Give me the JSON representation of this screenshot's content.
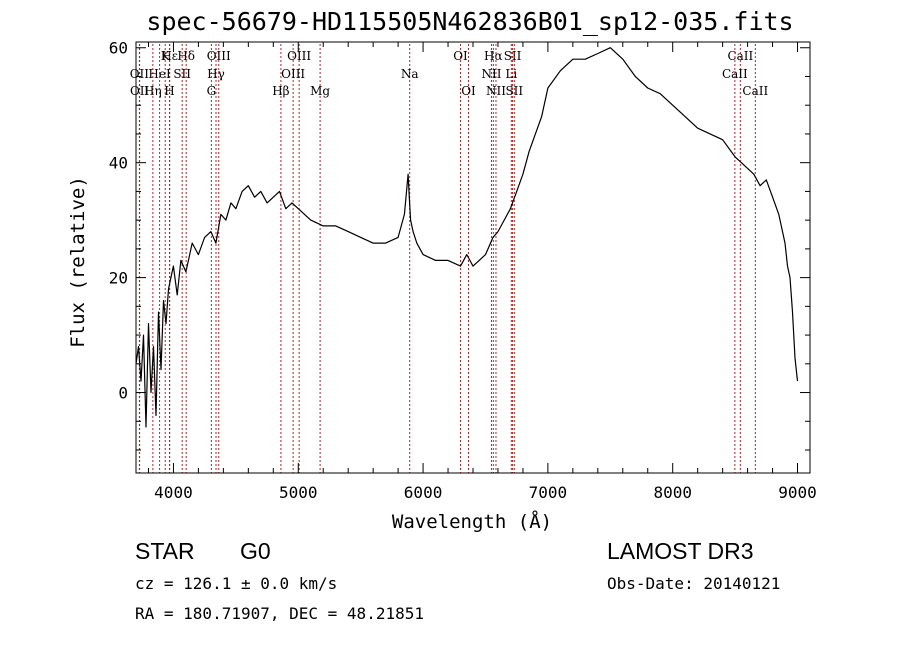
{
  "chart_data": {
    "type": "line",
    "title": "spec-56679-HD115505N462836B01_sp12-035.fits",
    "xlabel": "Wavelength (Å)",
    "ylabel": "Flux (relative)",
    "xlim": [
      3700,
      9100
    ],
    "ylim": [
      -14,
      61
    ],
    "xticks": [
      4000,
      5000,
      6000,
      7000,
      8000,
      9000
    ],
    "yticks": [
      0,
      20,
      40,
      60
    ],
    "series": [
      {
        "name": "spectrum",
        "x": [
          3700,
          3720,
          3740,
          3760,
          3780,
          3800,
          3820,
          3840,
          3860,
          3880,
          3900,
          3920,
          3940,
          3960,
          3980,
          4000,
          4030,
          4060,
          4100,
          4150,
          4200,
          4250,
          4300,
          4340,
          4380,
          4420,
          4460,
          4500,
          4550,
          4600,
          4650,
          4700,
          4750,
          4800,
          4850,
          4900,
          4950,
          5000,
          5100,
          5200,
          5300,
          5400,
          5500,
          5600,
          5700,
          5800,
          5850,
          5880,
          5890,
          5900,
          5920,
          5950,
          6000,
          6100,
          6200,
          6300,
          6350,
          6400,
          6450,
          6500,
          6560,
          6600,
          6650,
          6700,
          6750,
          6800,
          6850,
          6900,
          6950,
          7000,
          7100,
          7200,
          7300,
          7400,
          7500,
          7600,
          7700,
          7800,
          7900,
          8000,
          8100,
          8200,
          8300,
          8400,
          8500,
          8550,
          8600,
          8650,
          8700,
          8750,
          8800,
          8850,
          8900,
          8920,
          8940,
          8960,
          8980,
          9000
        ],
        "y": [
          5,
          8,
          2,
          10,
          -6,
          12,
          0,
          8,
          -4,
          14,
          4,
          16,
          12,
          18,
          20,
          22,
          17,
          23,
          21,
          26,
          24,
          27,
          28,
          26,
          31,
          30,
          33,
          32,
          35,
          36,
          34,
          35,
          33,
          34,
          35,
          32,
          33,
          32,
          30,
          29,
          29,
          28,
          27,
          26,
          26,
          27,
          31,
          38,
          34,
          30,
          28,
          26,
          24,
          23,
          23,
          22,
          24,
          22,
          23,
          24,
          27,
          28,
          30,
          32,
          35,
          38,
          42,
          45,
          48,
          53,
          56,
          58,
          58,
          59,
          60,
          58,
          55,
          53,
          52,
          50,
          48,
          46,
          45,
          44,
          41,
          40,
          39,
          38,
          36,
          37,
          34,
          31,
          26,
          22,
          20,
          14,
          6,
          2
        ]
      }
    ],
    "lines": [
      {
        "label": "Hε",
        "x": 3970,
        "row": 0
      },
      {
        "label": "OII",
        "x": 3727,
        "row": 1
      },
      {
        "label": "OII",
        "x": 3729,
        "row": 2
      },
      {
        "label": "Hη",
        "x": 3835,
        "row": 2
      },
      {
        "label": "K",
        "x": 3934,
        "row": 0
      },
      {
        "label": "HeI",
        "x": 3889,
        "row": 1
      },
      {
        "label": "SII",
        "x": 4070,
        "row": 1
      },
      {
        "label": "H",
        "x": 3968,
        "row": 2
      },
      {
        "label": "Hδ",
        "x": 4102,
        "row": 0
      },
      {
        "label": "OIII",
        "x": 4363,
        "row": 0
      },
      {
        "label": "Hγ",
        "x": 4341,
        "row": 1
      },
      {
        "label": "G",
        "x": 4304,
        "row": 2
      },
      {
        "label": "Hβ",
        "x": 4861,
        "row": 2
      },
      {
        "label": "OIII",
        "x": 5007,
        "row": 0
      },
      {
        "label": "OIII",
        "x": 4959,
        "row": 1
      },
      {
        "label": "Mg",
        "x": 5175,
        "row": 2
      },
      {
        "label": "Na",
        "x": 5893,
        "row": 1
      },
      {
        "label": "OI",
        "x": 6300,
        "row": 0
      },
      {
        "label": "OI",
        "x": 6364,
        "row": 2
      },
      {
        "label": "Hα",
        "x": 6563,
        "row": 0
      },
      {
        "label": "NII",
        "x": 6548,
        "row": 1
      },
      {
        "label": "NII",
        "x": 6584,
        "row": 2
      },
      {
        "label": "SII",
        "x": 6717,
        "row": 0
      },
      {
        "label": "Li",
        "x": 6707,
        "row": 1
      },
      {
        "label": "SII",
        "x": 6731,
        "row": 2
      },
      {
        "label": "CaII",
        "x": 8542,
        "row": 0
      },
      {
        "label": "CaII",
        "x": 8498,
        "row": 1
      },
      {
        "label": "CaII",
        "x": 8662,
        "row": 2
      }
    ]
  },
  "info": {
    "object_type": "STAR",
    "subclass": "G0",
    "survey": "LAMOST DR3",
    "cz": "cz = 126.1 ± 0.0 km/s",
    "obs_date": "Obs-Date: 20140121",
    "coords": "RA = 180.71907, DEC =  48.21851"
  }
}
